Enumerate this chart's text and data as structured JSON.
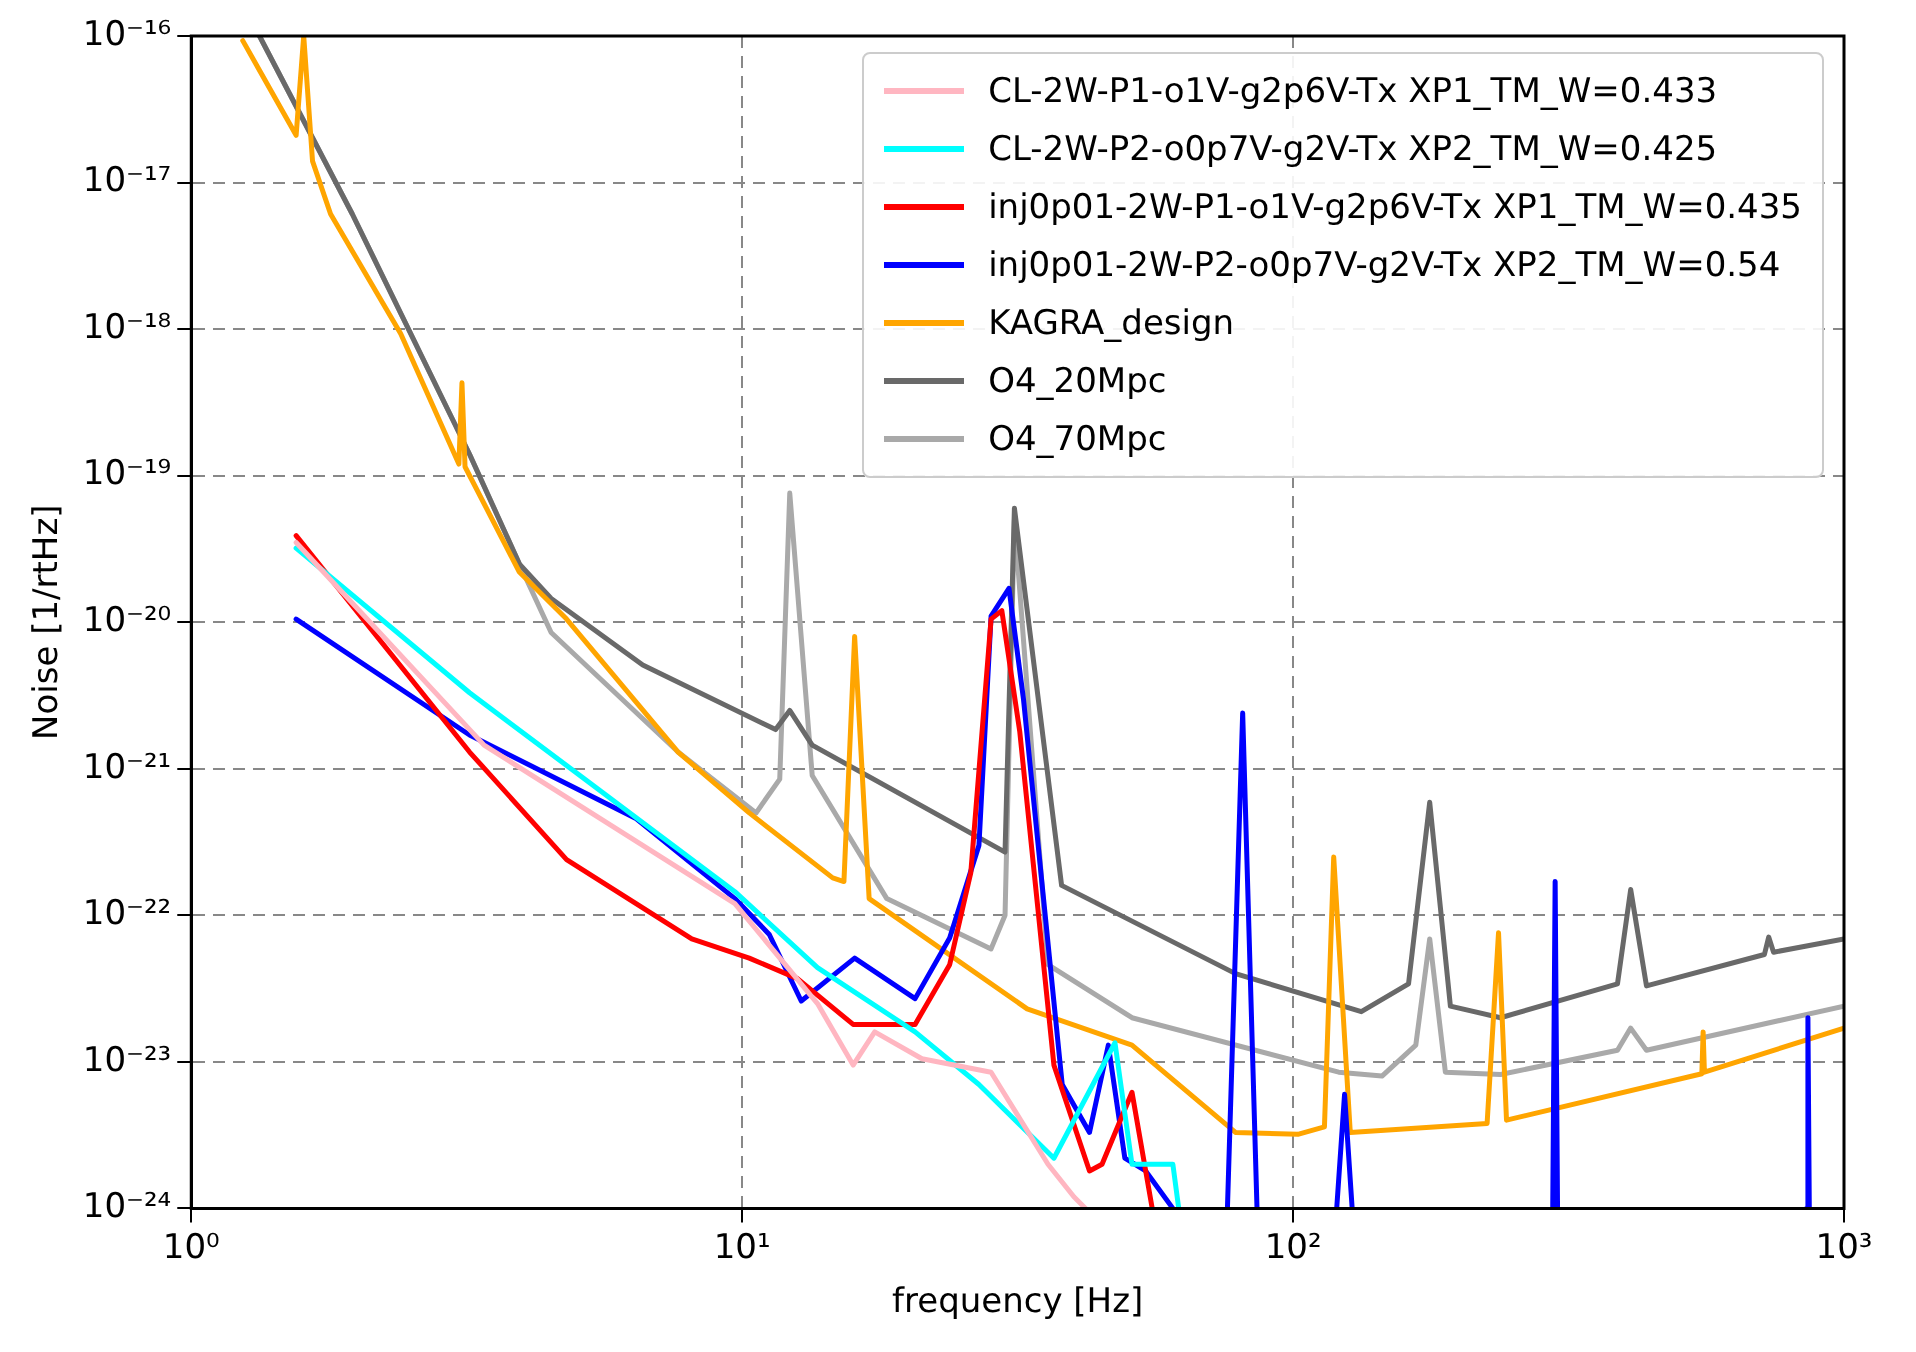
{
  "chart_data": {
    "type": "line",
    "xlabel": "frequency [Hz]",
    "ylabel": "Noise [1/rtHz]",
    "log": "xy",
    "grid": true,
    "legend": "top right",
    "line_style": "solid",
    "marker": "none",
    "xlim": [
      1,
      1000
    ],
    "ylim": [
      1e-24,
      1e-16
    ],
    "xticks": [
      {
        "value": 1,
        "label": "10⁰"
      },
      {
        "value": 10,
        "label": "10¹"
      },
      {
        "value": 100,
        "label": "10²"
      },
      {
        "value": 1000,
        "label": "10³"
      }
    ],
    "yticks": [
      {
        "value": 1e-24,
        "label": "10⁻²⁴"
      },
      {
        "value": 1e-23,
        "label": "10⁻²³"
      },
      {
        "value": 1e-22,
        "label": "10⁻²²"
      },
      {
        "value": 1e-21,
        "label": "10⁻²¹"
      },
      {
        "value": 1e-20,
        "label": "10⁻²⁰"
      },
      {
        "value": 1e-19,
        "label": "10⁻¹⁹"
      },
      {
        "value": 1e-18,
        "label": "10⁻¹⁸"
      },
      {
        "value": 1e-17,
        "label": "10⁻¹⁷"
      },
      {
        "value": 1e-16,
        "label": "10⁻¹⁶"
      }
    ],
    "series": [
      {
        "name": "CL-2W-P1-o1V-g2p6V-Tx XP1_TM_W=0.433",
        "color": "#ffb6c1",
        "x": [
          1.55,
          3.4,
          9.7,
          13.7,
          15.9,
          17.4,
          21.2,
          28.3,
          35.9,
          40,
          42
        ],
        "values": [
          3.5e-20,
          1.45e-21,
          1.2e-22,
          2.5e-23,
          9.5e-24,
          1.6e-23,
          1.05e-23,
          8.5e-24,
          2e-24,
          1.2e-24,
          1e-24
        ]
      },
      {
        "name": "CL-2W-P2-o0p7V-g2V-Tx XP2_TM_W=0.425",
        "color": "#00ffff",
        "x": [
          1.55,
          3.2,
          9.7,
          13.7,
          20.6,
          26.9,
          36.8,
          47.5,
          51,
          60.5,
          62
        ],
        "values": [
          3.2e-20,
          3.3e-21,
          1.45e-22,
          4.4e-23,
          1.6e-23,
          7e-24,
          2.2e-24,
          1.35e-23,
          2e-24,
          2e-24,
          1e-24
        ]
      },
      {
        "name": "inj0p01-2W-P1-o1V-g2p6V-Tx XP1_TM_W=0.435",
        "color": "#ff0000",
        "x": [
          1.55,
          3.2,
          4.8,
          8.1,
          10.3,
          12.6,
          15.9,
          20.6,
          23.8,
          26,
          28.3,
          29.6,
          31.9,
          36.8,
          42.7,
          45,
          51,
          55.5
        ],
        "values": [
          3.9e-20,
          1.3e-21,
          2.4e-22,
          6.9e-23,
          5.1e-23,
          3.7e-23,
          1.8e-23,
          1.8e-23,
          4.6e-23,
          1.95e-22,
          1.05e-20,
          1.2e-20,
          1.8e-21,
          9.5e-24,
          1.8e-24,
          2e-24,
          6.2e-24,
          1e-24
        ]
      },
      {
        "name": "inj0p01-2W-P2-o0p7V-g2V-Tx XP2_TM_W=0.54",
        "color": "#0000ff",
        "x": [
          1.55,
          3.2,
          6.4,
          9.7,
          11.2,
          12.8,
          16,
          20.6,
          23.8,
          26.9,
          28.3,
          30.5,
          32.4,
          38.1,
          42.7,
          46.2,
          49.5,
          54,
          60.5,
          70,
          76,
          81,
          86,
          100,
          120,
          124,
          128,
          200,
          296,
          299,
          302,
          500,
          855,
          860,
          865
        ],
        "values": [
          1.05e-20,
          1.7e-21,
          4.6e-22,
          1.3e-22,
          7.4e-23,
          2.6e-23,
          5.1e-23,
          2.7e-23,
          7e-23,
          3e-22,
          1.1e-20,
          1.7e-20,
          3e-21,
          7e-24,
          3.3e-24,
          1.3e-23,
          2.2e-24,
          1.8e-24,
          1e-24,
          null,
          1e-24,
          2.4e-21,
          1e-24,
          null,
          1e-24,
          6e-24,
          1e-24,
          null,
          1e-24,
          1.7e-22,
          1e-24,
          null,
          1e-24,
          2e-23,
          1e-24
        ]
      },
      {
        "name": "KAGRA_design",
        "color": "#ffa500",
        "x": [
          1.24,
          1.55,
          1.6,
          1.66,
          1.79,
          2.4,
          3.06,
          3.1,
          3.14,
          3.94,
          4.8,
          7.65,
          10.3,
          14.6,
          15.3,
          16,
          17,
          32.9,
          51,
          78.6,
          102,
          114,
          118.5,
          127,
          225,
          236,
          244,
          552,
          555,
          558,
          1000
        ],
        "values": [
          9.3e-17,
          2.1e-17,
          1e-16,
          1.4e-17,
          6.1e-18,
          9.3e-19,
          1.2e-19,
          4.3e-19,
          1.15e-19,
          2.2e-20,
          1.05e-20,
          1.3e-21,
          5e-22,
          1.8e-22,
          1.7e-22,
          8e-21,
          1.3e-22,
          2.3e-23,
          1.3e-23,
          3.3e-24,
          3.2e-24,
          3.6e-24,
          2.5e-22,
          3.3e-24,
          3.8e-24,
          7.6e-23,
          4e-24,
          8.3e-24,
          1.6e-23,
          8.5e-24,
          1.7e-23
        ]
      },
      {
        "name": "O4_20Mpc",
        "color": "#696969",
        "x": [
          1.33,
          1.96,
          3.2,
          3.94,
          4.5,
          6.6,
          11.5,
          12.2,
          13.4,
          30,
          31.2,
          38,
          78.6,
          133,
          162,
          177,
          193,
          238,
          388,
          410,
          438,
          717,
          730,
          745,
          1000
        ],
        "values": [
          1e-16,
          6.1e-18,
          1.4e-19,
          2.5e-20,
          1.45e-20,
          5.1e-21,
          1.85e-21,
          2.5e-21,
          1.45e-21,
          2.7e-22,
          6e-20,
          1.6e-22,
          4e-23,
          2.2e-23,
          3.4e-23,
          5.9e-22,
          2.4e-23,
          2e-23,
          3.4e-23,
          1.5e-22,
          3.3e-23,
          5.4e-23,
          7.1e-23,
          5.6e-23,
          6.9e-23
        ]
      },
      {
        "name": "O4_70Mpc",
        "color": "#a9a9a9",
        "x": [
          1.33,
          1.96,
          3.2,
          3.94,
          4.5,
          7.65,
          10.6,
          11.7,
          12.2,
          13.4,
          18.3,
          28.3,
          30,
          31.2,
          35.9,
          51,
          121,
          145,
          167,
          177,
          189,
          238,
          388,
          410,
          438,
          1000
        ],
        "values": [
          1e-16,
          6.1e-18,
          1.4e-19,
          2.5e-20,
          8.5e-21,
          1.3e-21,
          5e-22,
          8.5e-22,
          7.6e-20,
          9e-22,
          1.3e-22,
          5.9e-23,
          1e-22,
          5e-20,
          4.6e-23,
          2e-23,
          8.5e-24,
          8e-24,
          1.3e-23,
          6.9e-23,
          8.5e-24,
          8.2e-24,
          1.2e-23,
          1.7e-23,
          1.2e-23,
          2.4e-23
        ]
      }
    ]
  }
}
